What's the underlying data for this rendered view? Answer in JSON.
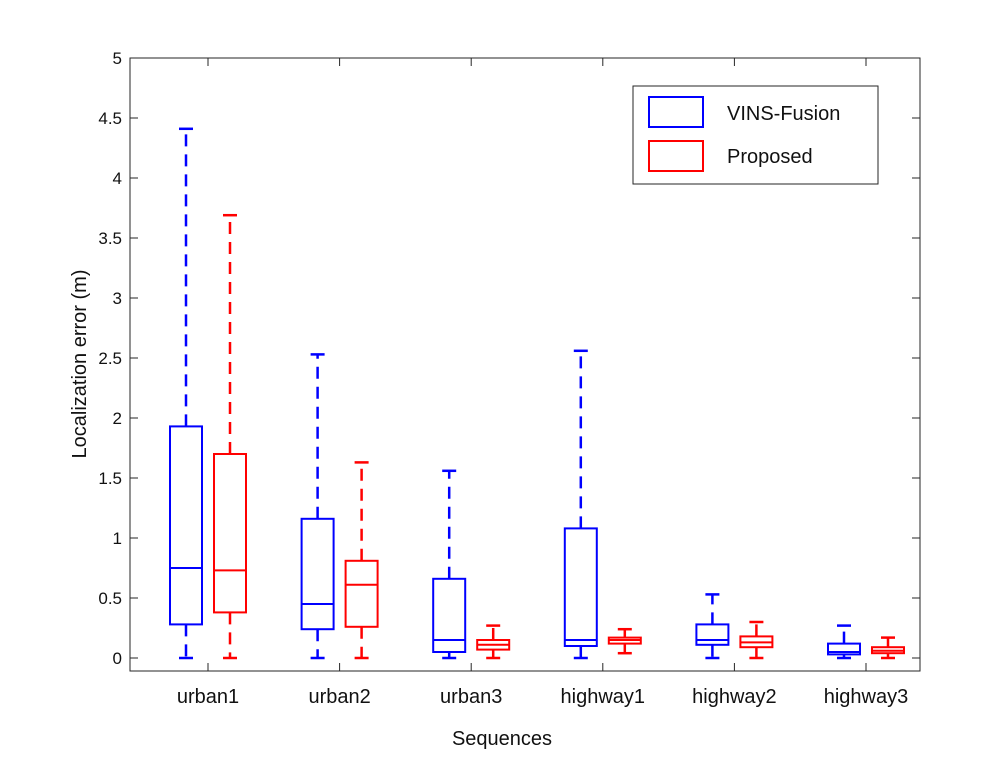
{
  "chart_data": {
    "type": "boxplot",
    "title": "",
    "xlabel": "Sequences",
    "ylabel": "Localization error (m)",
    "ylim": [
      -0.1,
      5
    ],
    "yticks": [
      0,
      0.5,
      1,
      1.5,
      2,
      2.5,
      3,
      3.5,
      4,
      4.5,
      5
    ],
    "ytick_labels": [
      "0",
      "0.5",
      "1",
      "1.5",
      "2",
      "2.5",
      "3",
      "3.5",
      "4",
      "4.5",
      "5"
    ],
    "categories": [
      "urban1",
      "urban2",
      "urban3",
      "highway1",
      "highway2",
      "highway3"
    ],
    "legend_position": "top-right",
    "series": [
      {
        "name": "VINS-Fusion",
        "color": "#0000ff",
        "boxes": [
          {
            "min": 0.0,
            "q1": 0.28,
            "median": 0.75,
            "q3": 1.93,
            "max": 4.41
          },
          {
            "min": 0.0,
            "q1": 0.24,
            "median": 0.45,
            "q3": 1.16,
            "max": 2.53
          },
          {
            "min": 0.0,
            "q1": 0.05,
            "median": 0.15,
            "q3": 0.66,
            "max": 1.56
          },
          {
            "min": 0.0,
            "q1": 0.1,
            "median": 0.15,
            "q3": 1.08,
            "max": 2.56
          },
          {
            "min": 0.0,
            "q1": 0.11,
            "median": 0.15,
            "q3": 0.28,
            "max": 0.53
          },
          {
            "min": 0.0,
            "q1": 0.03,
            "median": 0.05,
            "q3": 0.12,
            "max": 0.27
          }
        ]
      },
      {
        "name": "Proposed",
        "color": "#ff0000",
        "boxes": [
          {
            "min": 0.0,
            "q1": 0.38,
            "median": 0.73,
            "q3": 1.7,
            "max": 3.69
          },
          {
            "min": 0.0,
            "q1": 0.26,
            "median": 0.61,
            "q3": 0.81,
            "max": 1.63
          },
          {
            "min": 0.0,
            "q1": 0.07,
            "median": 0.11,
            "q3": 0.15,
            "max": 0.27
          },
          {
            "min": 0.04,
            "q1": 0.12,
            "median": 0.15,
            "q3": 0.17,
            "max": 0.24
          },
          {
            "min": 0.0,
            "q1": 0.09,
            "median": 0.13,
            "q3": 0.18,
            "max": 0.3
          },
          {
            "min": 0.0,
            "q1": 0.04,
            "median": 0.06,
            "q3": 0.09,
            "max": 0.17
          }
        ]
      }
    ]
  }
}
